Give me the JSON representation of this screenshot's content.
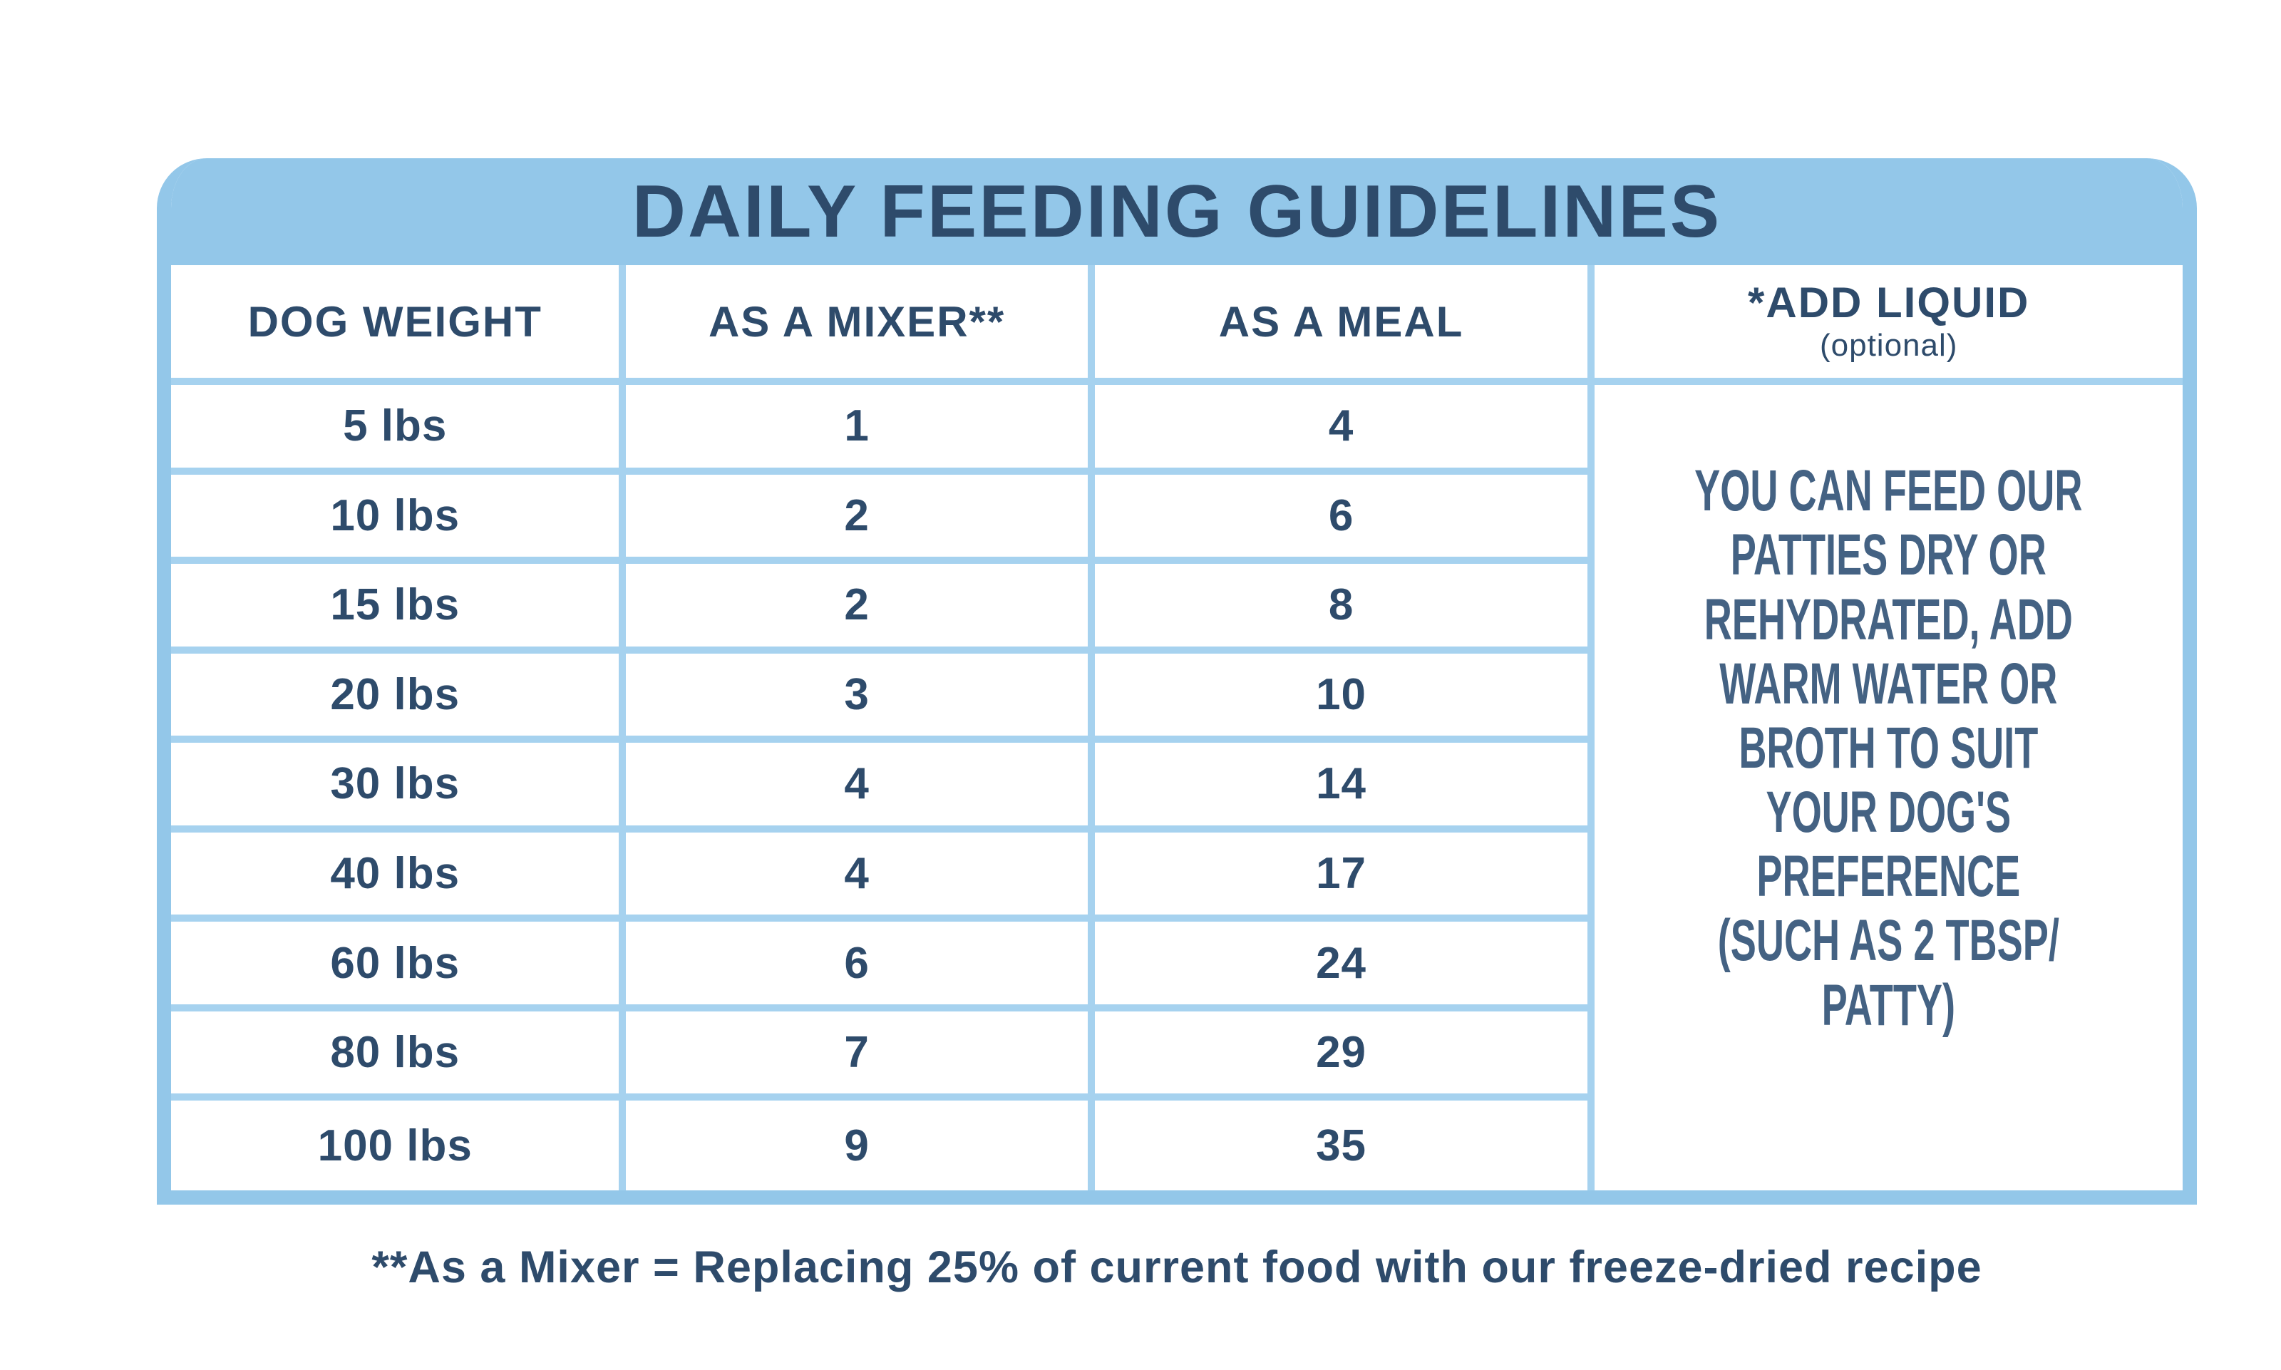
{
  "title": "DAILY FEEDING GUIDELINES",
  "table": {
    "columns": [
      "DOG WEIGHT",
      "AS A MIXER**",
      "AS A MEAL"
    ],
    "add_liquid_header": "*ADD LIQUID",
    "add_liquid_subheader": "(optional)",
    "add_liquid_note": "YOU CAN FEED OUR\nPATTIES DRY OR\nREHYDRATED, ADD\nWARM WATER OR\nBROTH TO SUIT\nYOUR DOG'S\nPREFERENCE\n(SUCH AS 2 TBSP/\nPATTY)",
    "rows": [
      {
        "weight": "5 lbs",
        "mixer": "1",
        "meal": "4"
      },
      {
        "weight": "10 lbs",
        "mixer": "2",
        "meal": "6"
      },
      {
        "weight": "15 lbs",
        "mixer": "2",
        "meal": "8"
      },
      {
        "weight": "20 lbs",
        "mixer": "3",
        "meal": "10"
      },
      {
        "weight": "30 lbs",
        "mixer": "4",
        "meal": "14"
      },
      {
        "weight": "40 lbs",
        "mixer": "4",
        "meal": "17"
      },
      {
        "weight": "60 lbs",
        "mixer": "6",
        "meal": "24"
      },
      {
        "weight": "80 lbs",
        "mixer": "7",
        "meal": "29"
      },
      {
        "weight": "100 lbs",
        "mixer": "9",
        "meal": "35"
      }
    ]
  },
  "footnote": "**As a Mixer = Replacing 25% of current food with our freeze-dried recipe",
  "colors": {
    "band_blue": "#93c7e9",
    "grid_blue": "#a6d2ef",
    "navy_text": "#2e4b6b",
    "note_text": "#3d5c7e",
    "background": "#ffffff"
  },
  "chart_data": {
    "type": "table",
    "title": "DAILY FEEDING GUIDELINES",
    "columns": [
      "DOG WEIGHT",
      "AS A MIXER**",
      "AS A MEAL",
      "*ADD LIQUID (optional)"
    ],
    "rows": [
      [
        "5 lbs",
        1,
        4
      ],
      [
        "10 lbs",
        2,
        6
      ],
      [
        "15 lbs",
        2,
        8
      ],
      [
        "20 lbs",
        3,
        10
      ],
      [
        "30 lbs",
        4,
        14
      ],
      [
        "40 lbs",
        4,
        17
      ],
      [
        "60 lbs",
        6,
        24
      ],
      [
        "80 lbs",
        7,
        29
      ],
      [
        "100 lbs",
        9,
        35
      ]
    ],
    "add_liquid_note": "YOU CAN FEED OUR PATTIES DRY OR REHYDRATED, ADD WARM WATER OR BROTH TO SUIT YOUR DOG'S PREFERENCE (SUCH AS 2 TBSP/ PATTY)",
    "footnote": "**As a Mixer = Replacing 25% of current food with our freeze-dried recipe",
    "legend_position": "none",
    "grid": true
  }
}
